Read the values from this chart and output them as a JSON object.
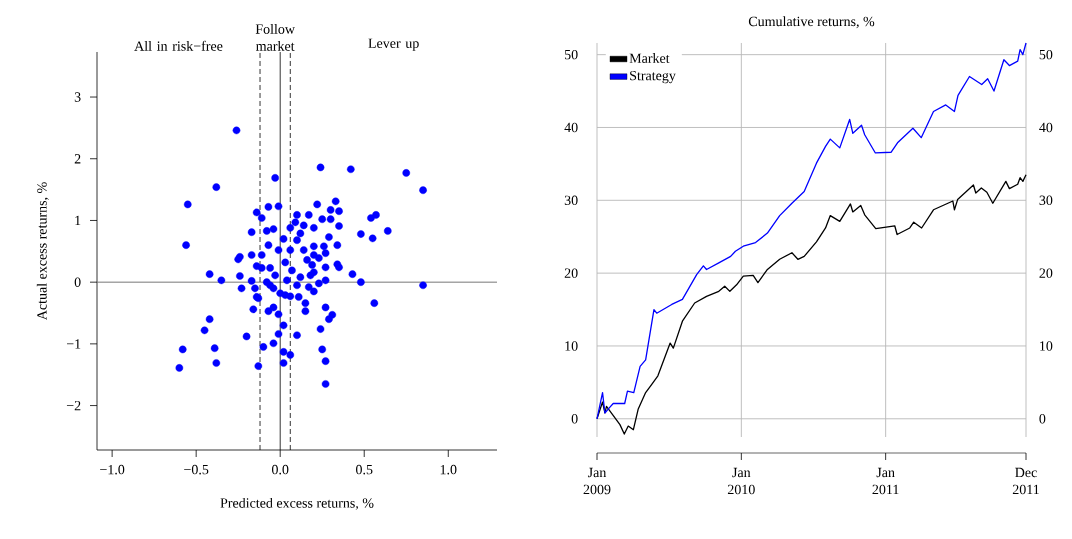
{
  "chart_data": [
    {
      "type": "scatter",
      "xlabel": "Predicted excess returns, %",
      "ylabel": "Actual excess returns, %",
      "color": "#0000ff",
      "marker": "circle",
      "annotations": [
        "All in risk−free",
        "Follow market",
        "Lever up"
      ],
      "xlim": [
        -1.09,
        1.29
      ],
      "ylim": [
        -2.72,
        3.73
      ],
      "xticks": [
        {
          "value": -1,
          "label": "−1.0"
        },
        {
          "value": -0.5,
          "label": "−0.5"
        },
        {
          "value": 0,
          "label": "0.0"
        },
        {
          "value": 0.5,
          "label": "0.5"
        },
        {
          "value": 1,
          "label": "1.0"
        }
      ],
      "yticks": [
        {
          "value": -2,
          "label": "−2"
        },
        {
          "value": -1,
          "label": "−1"
        },
        0,
        1,
        2,
        3
      ],
      "ref_lines": [
        {
          "axis": "y",
          "value": 0,
          "color": "#777777",
          "line_style": "solid"
        },
        {
          "axis": "x",
          "value": 0,
          "color": "#000000",
          "line_style": "solid"
        },
        {
          "axis": "x",
          "value": -0.12,
          "color": "#000000",
          "line_style": "dashed"
        },
        {
          "axis": "x",
          "value": 0.06,
          "color": "#000000",
          "line_style": "dashed"
        }
      ],
      "x": [
        -0.26,
        0.75,
        0.85,
        -0.38,
        -0.55,
        -0.56,
        -0.03,
        -0.14,
        -0.11,
        -0.07,
        -0.01,
        0.24,
        0.42,
        -0.17,
        -0.08,
        -0.04,
        0.02,
        -0.24,
        -0.25,
        -0.42,
        -0.35,
        -0.24,
        -0.23,
        -0.17,
        -0.15,
        -0.14,
        0.33,
        0.22,
        0.3,
        0.35,
        0.17,
        0.25,
        0.3,
        0.14,
        0.2,
        0.35,
        0.57,
        0.54,
        0.64,
        0.48,
        0.55,
        0.29,
        0.34,
        0.26,
        0.2,
        0.27,
        0.2,
        0.14,
        0.34,
        0.35,
        0.27,
        0.19,
        0.2,
        0.43,
        0.48,
        0.85,
        0.27,
        0.23,
        0.2,
        0.56,
        0.27,
        0.31,
        0.15,
        0.15,
        0.29,
        0.24,
        0.25,
        0.27,
        0.27,
        -0.42,
        -0.45,
        -0.58,
        -0.39,
        -0.6,
        -0.38,
        -0.2,
        -0.1,
        -0.04,
        -0.01,
        0.02,
        0.1,
        -0.16,
        -0.07,
        -0.04,
        -0.01,
        -0.13,
        0.02,
        0.06,
        0.02,
        0.11,
        0.06,
        0.0,
        -0.04,
        -0.06,
        -0.13,
        -0.17,
        -0.11,
        -0.06,
        0.03,
        0.06,
        0.1,
        0.12,
        0.09,
        0.07,
        0.12,
        0.04,
        0.1,
        -0.03,
        -0.11,
        -0.08,
        0.18,
        0.16,
        0.23,
        0.06,
        -0.01,
        -0.07,
        -0.14,
        0.03,
        0.17,
        0.1
      ],
      "values": [
        2.46,
        1.77,
        1.49,
        1.54,
        1.26,
        0.6,
        1.69,
        1.13,
        1.04,
        1.22,
        1.23,
        1.86,
        1.83,
        0.81,
        0.83,
        0.86,
        0.7,
        0.41,
        0.37,
        0.13,
        0.03,
        0.1,
        -0.1,
        0.02,
        -0.1,
        -0.24,
        1.31,
        1.26,
        1.17,
        1.15,
        1.09,
        1.02,
        1.02,
        0.92,
        0.88,
        0.91,
        1.09,
        1.04,
        0.83,
        0.78,
        0.71,
        0.73,
        0.6,
        0.58,
        0.58,
        0.47,
        0.44,
        0.52,
        0.29,
        0.24,
        0.24,
        0.28,
        0.16,
        0.13,
        0.0,
        -0.05,
        0.03,
        -0.02,
        -0.15,
        -0.34,
        -0.41,
        -0.53,
        -0.34,
        -0.47,
        -0.6,
        -0.76,
        -1.09,
        -1.28,
        -1.65,
        -0.6,
        -0.78,
        -1.09,
        -1.07,
        -1.39,
        -1.31,
        -0.88,
        -1.05,
        -0.99,
        -0.84,
        -0.7,
        -0.86,
        -0.44,
        -0.47,
        -0.41,
        -0.52,
        -1.36,
        -1.13,
        -1.18,
        -1.31,
        -0.24,
        -0.23,
        -0.18,
        -0.1,
        -0.05,
        -0.26,
        0.44,
        0.44,
        0.23,
        0.32,
        0.52,
        0.68,
        0.79,
        0.97,
        0.19,
        0.08,
        0.03,
        -0.05,
        0.11,
        0.23,
        0.0,
        0.11,
        0.36,
        0.39,
        0.88,
        0.52,
        0.6,
        0.26,
        -0.21,
        -0.08,
        1.09
      ]
    },
    {
      "type": "line",
      "title": "Cumulative returns, %",
      "grid": true,
      "legend": "top left",
      "marker": "none",
      "xlim": [
        "2009-01-01",
        "2011-12-22"
      ],
      "xticks": [
        {
          "value": "2009-01-01",
          "label": "Jan 2009"
        },
        {
          "value": "2010-01-01",
          "label": "Jan 2010"
        },
        {
          "value": "2011-01-01",
          "label": "Jan 2011"
        },
        {
          "value": "2011-12-22",
          "label": "Dec 2011"
        }
      ],
      "ylim": [
        -2.5,
        51.6
      ],
      "yticks": [
        0,
        10,
        20,
        30,
        40,
        50
      ],
      "y2lim": [
        -2.5,
        51.6
      ],
      "y2ticks": [
        0,
        10,
        20,
        30,
        40,
        50
      ],
      "series": [
        {
          "name": "Market",
          "color": "#000000",
          "x": [
            "2009-01-01",
            "2009-01-15",
            "2009-01-21",
            "2009-01-25",
            "2009-02-28",
            "2009-03-11",
            "2009-03-21",
            "2009-04-03",
            "2009-04-15",
            "2009-05-04",
            "2009-05-19",
            "2009-06-04",
            "2009-07-05",
            "2009-07-13",
            "2009-08-05",
            "2009-09-05",
            "2009-10-05",
            "2009-11-05",
            "2009-11-20",
            "2009-12-03",
            "2009-12-20",
            "2010-01-06",
            "2010-01-31",
            "2010-02-12",
            "2010-03-08",
            "2010-04-08",
            "2010-05-09",
            "2010-05-24",
            "2010-06-09",
            "2010-07-10",
            "2010-08-02",
            "2010-08-14",
            "2010-09-07",
            "2010-10-04",
            "2010-10-10",
            "2010-10-30",
            "2010-11-09",
            "2010-12-07",
            "2011-01-24",
            "2011-01-30",
            "2011-03-03",
            "2011-03-13",
            "2011-04-02",
            "2011-05-02",
            "2011-06-20",
            "2011-06-24",
            "2011-07-02",
            "2011-08-11",
            "2011-08-17",
            "2011-08-31",
            "2011-09-14",
            "2011-09-29",
            "2011-11-01",
            "2011-11-10",
            "2011-12-01",
            "2011-12-07",
            "2011-12-14",
            "2011-12-22"
          ],
          "values": [
            0,
            2.3,
            0.8,
            1.7,
            -0.8,
            -2.1,
            -1.0,
            -1.5,
            1.3,
            3.6,
            4.7,
            5.9,
            10.4,
            9.7,
            13.4,
            15.9,
            16.8,
            17.5,
            18.2,
            17.5,
            18.4,
            19.6,
            19.7,
            18.7,
            20.5,
            21.9,
            22.8,
            21.9,
            22.3,
            24.3,
            26.2,
            27.9,
            27.1,
            29.5,
            28.4,
            29.3,
            28.0,
            26.1,
            26.5,
            25.3,
            26.2,
            27.0,
            26.2,
            28.7,
            29.9,
            28.7,
            30.1,
            32.1,
            31.0,
            31.7,
            31.1,
            29.6,
            32.6,
            31.6,
            32.2,
            33.1,
            32.6,
            33.5
          ]
        },
        {
          "name": "Strategy",
          "color": "#0000ff",
          "x": [
            "2009-01-01",
            "2009-01-15",
            "2009-01-21",
            "2009-02-01",
            "2009-02-11",
            "2009-03-12",
            "2009-03-19",
            "2009-04-04",
            "2009-04-20",
            "2009-05-04",
            "2009-05-25",
            "2009-06-01",
            "2009-07-09",
            "2009-08-05",
            "2009-09-10",
            "2009-09-27",
            "2009-10-05",
            "2009-11-05",
            "2009-12-05",
            "2009-12-17",
            "2010-01-06",
            "2010-02-06",
            "2010-03-08",
            "2010-04-08",
            "2010-05-09",
            "2010-06-09",
            "2010-07-10",
            "2010-08-02",
            "2010-08-14",
            "2010-09-07",
            "2010-10-02",
            "2010-10-10",
            "2010-11-01",
            "2010-11-09",
            "2010-12-06",
            "2011-01-15",
            "2011-01-31",
            "2011-03-11",
            "2011-04-01",
            "2011-05-02",
            "2011-06-02",
            "2011-06-24",
            "2011-07-03",
            "2011-08-01",
            "2011-09-01",
            "2011-09-16",
            "2011-10-02",
            "2011-10-27",
            "2011-11-10",
            "2011-12-01",
            "2011-12-07",
            "2011-12-14",
            "2011-12-22"
          ],
          "values": [
            0,
            3.6,
            0.8,
            1.5,
            2.1,
            2.1,
            3.8,
            3.6,
            7.2,
            8.1,
            15.0,
            14.5,
            15.7,
            16.4,
            19.8,
            21.0,
            20.5,
            21.4,
            22.3,
            23.0,
            23.7,
            24.2,
            25.5,
            27.9,
            29.6,
            31.2,
            35.1,
            37.4,
            38.4,
            37.2,
            41.1,
            39.2,
            40.3,
            39.0,
            36.5,
            36.6,
            37.9,
            39.9,
            38.6,
            42.2,
            43.1,
            42.2,
            44.4,
            47.0,
            45.9,
            46.7,
            45.0,
            49.3,
            48.5,
            49.1,
            50.7,
            50.0,
            51.6
          ]
        }
      ]
    }
  ]
}
